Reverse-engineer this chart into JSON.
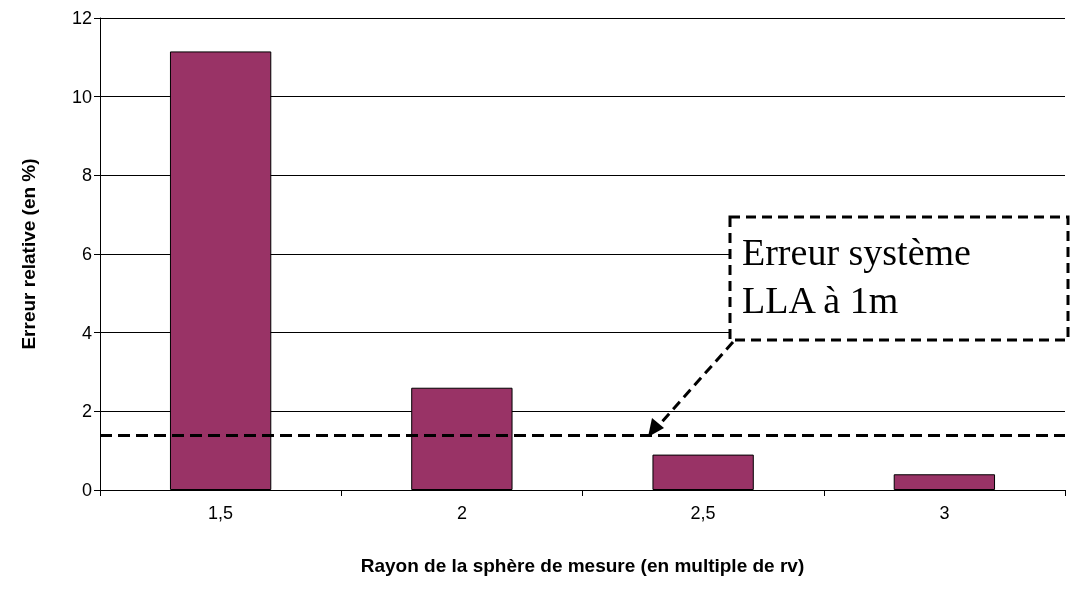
{
  "chart_data": {
    "type": "bar",
    "xlabel": "Rayon de la sphère de mesure (en multiple de rv)",
    "ylabel": "Erreur relative (en %)",
    "categories": [
      "1,5",
      "2",
      "2,5",
      "3"
    ],
    "values": [
      11.15,
      2.6,
      0.9,
      0.4
    ],
    "color": "#993366",
    "ylim": [
      0,
      12
    ],
    "yticks": [
      0,
      2,
      4,
      6,
      8,
      10,
      12
    ],
    "grid": "y",
    "ref_lines": [
      {
        "axis": "y",
        "value": 1.4,
        "label": "Erreur système\nLLA à 1m",
        "color": "#000000",
        "line_style": "dashed"
      }
    ]
  }
}
